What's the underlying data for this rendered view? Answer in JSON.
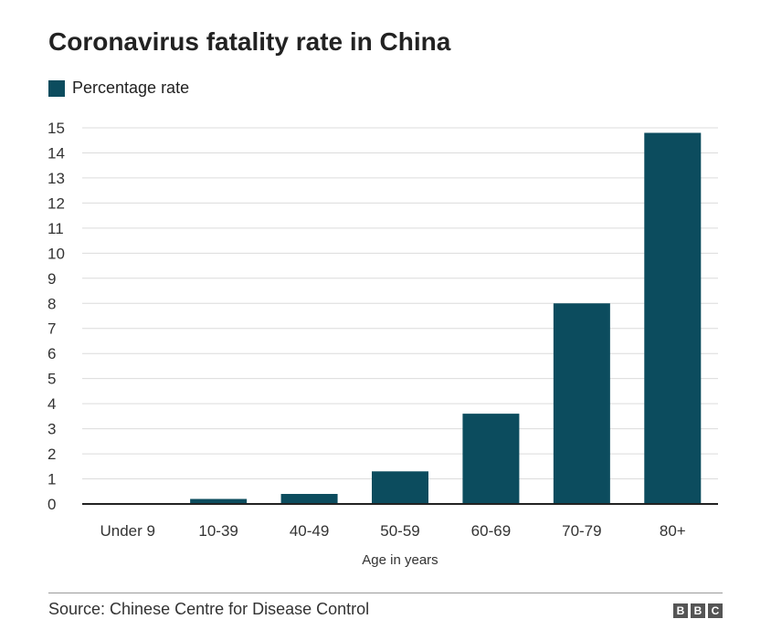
{
  "chart_data": {
    "type": "bar",
    "title": "Coronavirus fatality rate in China",
    "legend": [
      "Percentage rate"
    ],
    "legend_placement": "top-left",
    "categories": [
      "Under 9",
      "10-39",
      "40-49",
      "50-59",
      "60-69",
      "70-79",
      "80+"
    ],
    "series": [
      {
        "name": "Percentage rate",
        "values": [
          0,
          0.2,
          0.4,
          1.3,
          3.6,
          8.0,
          14.8
        ]
      }
    ],
    "xlabel": "Age in years",
    "ylabel": "",
    "ylim": [
      0,
      15
    ],
    "yticks": [
      0,
      1,
      2,
      3,
      4,
      5,
      6,
      7,
      8,
      9,
      10,
      11,
      12,
      13,
      14,
      15
    ],
    "grid": true,
    "bar_color": "#0c4c5e"
  },
  "footer": {
    "source": "Source: Chinese Centre for Disease Control",
    "logo": [
      "B",
      "B",
      "C"
    ]
  }
}
